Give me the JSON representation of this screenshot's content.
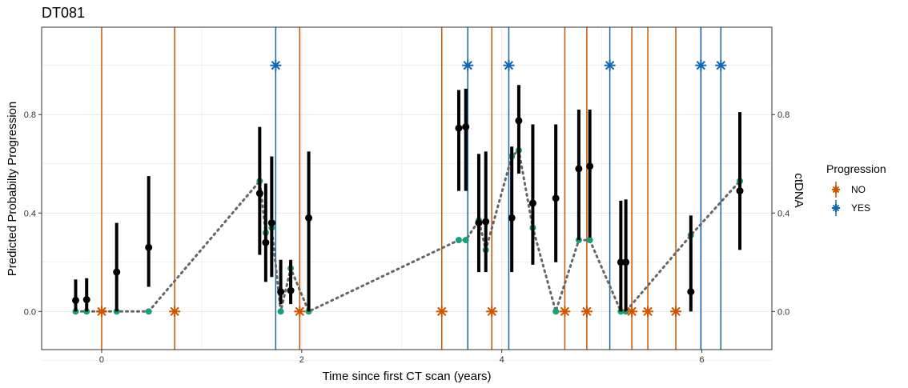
{
  "chart_data": {
    "type": "scatter",
    "title": "DT081",
    "xlabel": "Time since first CT scan (years)",
    "ylabel": "Predicted Probabilty Progression",
    "y2label": "ctDNA",
    "xlim": [
      -0.6,
      6.7
    ],
    "ylim": [
      -0.155,
      1.155
    ],
    "x_ticks": [
      0,
      2,
      4,
      6
    ],
    "y_ticks": [
      0.0,
      0.4,
      0.8
    ],
    "y_tick_labels": [
      "0.0",
      "0.4",
      "0.8"
    ],
    "grid": true,
    "legend": {
      "title": "Progression",
      "position": "right",
      "entries": [
        {
          "label": "NO",
          "color": "#cc5500"
        },
        {
          "label": "YES",
          "color": "#1366b0"
        }
      ]
    },
    "colors": {
      "NO": "#cc5500",
      "YES": "#1366b0",
      "prediction": "#000000",
      "ctdna": "#1b9e77",
      "ctdna_line": "#666666"
    },
    "progression_events": [
      {
        "x": 0.0,
        "status": "NO"
      },
      {
        "x": 0.73,
        "status": "NO"
      },
      {
        "x": 1.74,
        "status": "YES"
      },
      {
        "x": 1.98,
        "status": "NO"
      },
      {
        "x": 3.4,
        "status": "NO"
      },
      {
        "x": 3.66,
        "status": "YES"
      },
      {
        "x": 3.9,
        "status": "NO"
      },
      {
        "x": 4.07,
        "status": "YES"
      },
      {
        "x": 4.63,
        "status": "NO"
      },
      {
        "x": 4.85,
        "status": "NO"
      },
      {
        "x": 5.08,
        "status": "YES"
      },
      {
        "x": 5.3,
        "status": "NO"
      },
      {
        "x": 5.46,
        "status": "NO"
      },
      {
        "x": 5.74,
        "status": "NO"
      },
      {
        "x": 5.99,
        "status": "YES"
      },
      {
        "x": 6.19,
        "status": "YES"
      }
    ],
    "predictions": [
      {
        "x": -0.26,
        "y": 0.045,
        "low": 0.0,
        "high": 0.13
      },
      {
        "x": -0.15,
        "y": 0.048,
        "low": 0.0,
        "high": 0.135
      },
      {
        "x": 0.15,
        "y": 0.16,
        "low": 0.0,
        "high": 0.36
      },
      {
        "x": 0.47,
        "y": 0.26,
        "low": 0.1,
        "high": 0.55
      },
      {
        "x": 1.58,
        "y": 0.48,
        "low": 0.23,
        "high": 0.75
      },
      {
        "x": 1.64,
        "y": 0.28,
        "low": 0.12,
        "high": 0.52
      },
      {
        "x": 1.7,
        "y": 0.36,
        "low": 0.14,
        "high": 0.63
      },
      {
        "x": 1.79,
        "y": 0.08,
        "low": 0.03,
        "high": 0.21
      },
      {
        "x": 1.89,
        "y": 0.085,
        "low": 0.03,
        "high": 0.21
      },
      {
        "x": 2.07,
        "y": 0.38,
        "low": 0.0,
        "high": 0.65
      },
      {
        "x": 3.57,
        "y": 0.745,
        "low": 0.49,
        "high": 0.9
      },
      {
        "x": 3.64,
        "y": 0.75,
        "low": 0.49,
        "high": 0.905
      },
      {
        "x": 3.77,
        "y": 0.36,
        "low": 0.16,
        "high": 0.64
      },
      {
        "x": 3.84,
        "y": 0.365,
        "low": 0.16,
        "high": 0.65
      },
      {
        "x": 4.1,
        "y": 0.38,
        "low": 0.16,
        "high": 0.67
      },
      {
        "x": 4.17,
        "y": 0.775,
        "low": 0.56,
        "high": 0.92
      },
      {
        "x": 4.31,
        "y": 0.44,
        "low": 0.19,
        "high": 0.76
      },
      {
        "x": 4.54,
        "y": 0.46,
        "low": 0.2,
        "high": 0.76
      },
      {
        "x": 4.77,
        "y": 0.58,
        "low": 0.29,
        "high": 0.82
      },
      {
        "x": 4.88,
        "y": 0.59,
        "low": 0.3,
        "high": 0.82
      },
      {
        "x": 5.19,
        "y": 0.2,
        "low": 0.0,
        "high": 0.45
      },
      {
        "x": 5.24,
        "y": 0.2,
        "low": 0.0,
        "high": 0.455
      },
      {
        "x": 5.89,
        "y": 0.08,
        "low": 0.0,
        "high": 0.39
      },
      {
        "x": 6.38,
        "y": 0.49,
        "low": 0.25,
        "high": 0.81
      }
    ],
    "ctdna": [
      {
        "x": -0.26,
        "y": 0.0
      },
      {
        "x": -0.15,
        "y": 0.0
      },
      {
        "x": 0.15,
        "y": 0.0
      },
      {
        "x": 0.47,
        "y": 0.0
      },
      {
        "x": 1.58,
        "y": 0.53
      },
      {
        "x": 1.64,
        "y": 0.32
      },
      {
        "x": 1.7,
        "y": 0.34
      },
      {
        "x": 1.79,
        "y": 0.0
      },
      {
        "x": 1.89,
        "y": 0.175
      },
      {
        "x": 2.07,
        "y": 0.0
      },
      {
        "x": 3.57,
        "y": 0.29
      },
      {
        "x": 3.64,
        "y": 0.29
      },
      {
        "x": 3.77,
        "y": 0.37
      },
      {
        "x": 3.84,
        "y": 0.25
      },
      {
        "x": 4.1,
        "y": 0.63
      },
      {
        "x": 4.17,
        "y": 0.655
      },
      {
        "x": 4.31,
        "y": 0.34
      },
      {
        "x": 4.54,
        "y": 0.0
      },
      {
        "x": 4.77,
        "y": 0.29
      },
      {
        "x": 4.88,
        "y": 0.29
      },
      {
        "x": 5.19,
        "y": 0.0
      },
      {
        "x": 5.24,
        "y": 0.0
      },
      {
        "x": 5.89,
        "y": 0.31
      },
      {
        "x": 6.38,
        "y": 0.53
      }
    ]
  }
}
